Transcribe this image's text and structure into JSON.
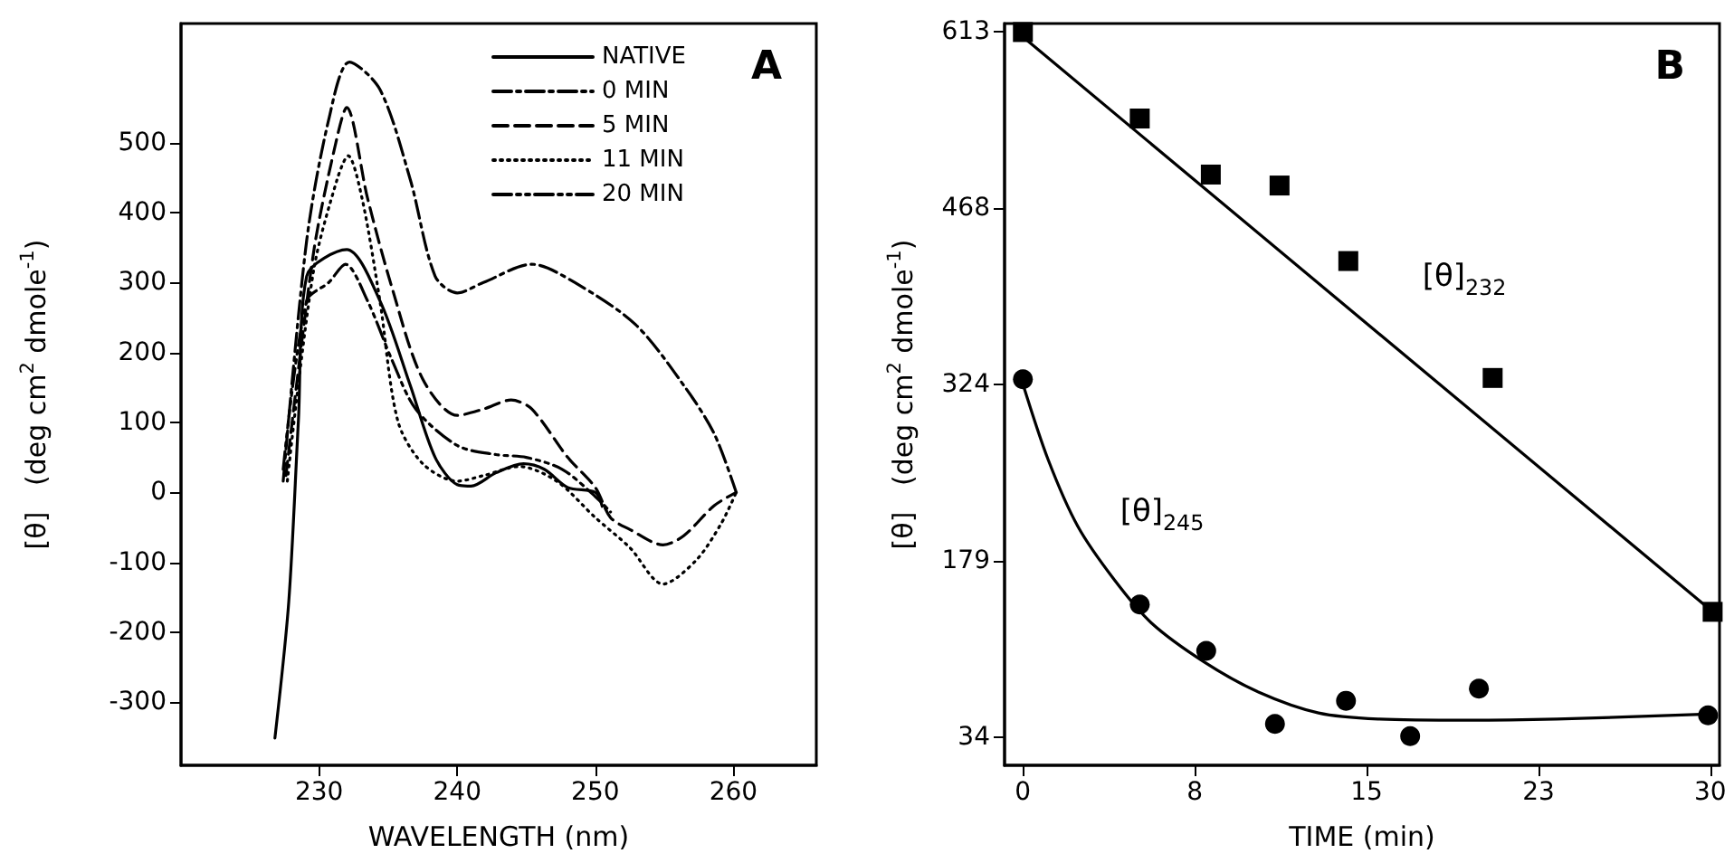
{
  "chart_data": [
    {
      "type": "line",
      "title": "A",
      "xlabel": "WAVELENGTH (nm)",
      "ylabel": "[θ]   (deg cm$^{2}$ dmole$^{-1}$)",
      "xlim": [
        220,
        266
      ],
      "ylim": [
        -390,
        670
      ],
      "xticks": [
        230,
        240,
        250,
        260
      ],
      "yticks": [
        -300,
        -200,
        -100,
        0,
        100,
        200,
        300,
        400,
        500
      ],
      "grid": false,
      "legend": "top right",
      "marker": "none",
      "series": [
        {
          "name": "NATIVE",
          "color": "#000000",
          "line_style": "solid",
          "x": [
            226.8,
            227.8,
            228.5,
            229.1,
            232,
            234.4,
            236.6,
            238.4,
            240,
            241,
            242.8,
            244.8,
            246.3,
            248,
            250,
            250.5
          ],
          "values": [
            -351,
            -157,
            102,
            309,
            347,
            274,
            153,
            50,
            11,
            9,
            28,
            41,
            33,
            7,
            0,
            -20
          ]
        },
        {
          "name": "0 MIN",
          "color": "#000000",
          "line_style": "dashdot",
          "x": [
            227.4,
            229.1,
            230.7,
            232.2,
            234.4,
            236.6,
            238.4,
            240,
            241.9,
            245.4,
            248.5,
            252.9,
            256.4,
            258.6,
            260.2
          ],
          "values": [
            16,
            360,
            533,
            615,
            576,
            447,
            309,
            285,
            300,
            326,
            300,
            240,
            153,
            84,
            0
          ]
        },
        {
          "name": "5 MIN",
          "color": "#000000",
          "line_style": "dashed",
          "x": [
            227.6,
            229.6,
            231.1,
            232,
            233.5,
            235.3,
            237.5,
            240,
            241.9,
            243.9,
            245.4,
            248,
            250,
            251.1,
            252.5,
            254.9,
            256.4,
            258.6,
            260.2
          ],
          "values": [
            24,
            343,
            490,
            550,
            421,
            291,
            162,
            110,
            119,
            132,
            119,
            50,
            7,
            -36,
            -53,
            -75,
            -62,
            -19,
            0
          ]
        },
        {
          "name": "11 MIN",
          "color": "#000000",
          "line_style": "dotted",
          "x": [
            227.7,
            229.6,
            231.3,
            232.1,
            233.1,
            234.4,
            235.7,
            237.5,
            240,
            241.9,
            244.5,
            247.2,
            250,
            252.5,
            254.9,
            257.3,
            259.1,
            260.2
          ],
          "values": [
            16,
            317,
            447,
            481,
            421,
            274,
            102,
            41,
            16,
            24,
            37,
            16,
            -36,
            -79,
            -131,
            -97,
            -45,
            0
          ]
        },
        {
          "name": "20 MIN",
          "color": "#000000",
          "line_style": "dashdotdot",
          "x": [
            227.4,
            229.1,
            230.7,
            231.9,
            233.5,
            235.3,
            237,
            240,
            242.8,
            245,
            247.6,
            250,
            251.1
          ],
          "values": [
            33,
            274,
            300,
            326,
            274,
            188,
            119,
            67,
            54,
            50,
            33,
            -6,
            -28
          ]
        }
      ]
    },
    {
      "type": "scatter",
      "title": "B",
      "xlabel": "TIME (min)",
      "ylabel": "[θ]   (deg cm$^{2}$ dmole$^{-1}$)",
      "xlim": [
        -0.8,
        30.4
      ],
      "ylim": [
        11,
        620
      ],
      "xticks": [
        0,
        {
          "value": 7.5,
          "label": "8"
        },
        15,
        {
          "value": 22.5,
          "label": "23"
        },
        30
      ],
      "yticks": [
        34,
        {
          "value": 178.75,
          "label": "179"
        },
        {
          "value": 323.5,
          "label": "324"
        },
        {
          "value": 468.25,
          "label": "468"
        },
        613
      ],
      "grid": false,
      "annotations": [
        "[θ]$_{232}$",
        "[θ]$_{245}$"
      ],
      "series": [
        {
          "color": "#000000",
          "marker": "square",
          "x": [
            0,
            5.1,
            8.2,
            11.2,
            14.2,
            20.5,
            30.1
          ],
          "values": [
            613,
            542,
            496,
            487,
            425,
            329,
            137
          ]
        },
        {
          "type": "line",
          "color": "#000000",
          "marker": "none",
          "line_style": "solid",
          "x": [
            0,
            30.1
          ],
          "values": [
            609,
            137
          ]
        },
        {
          "color": "#000000",
          "marker": "circle",
          "x": [
            0,
            5.1,
            8,
            11,
            14.1,
            16.9,
            19.9,
            29.9
          ],
          "values": [
            328,
            143,
            105,
            45,
            64,
            35,
            74,
            52
          ]
        },
        {
          "type": "line",
          "color": "#000000",
          "marker": "none",
          "line_style": "solid",
          "x": [
            0,
            1.1,
            2.4,
            4,
            5.6,
            7.9,
            10.3,
            12.9,
            15.5,
            19.4,
            23.3,
            29.9
          ],
          "values": [
            324,
            262,
            207,
            163,
            128,
            96,
            71,
            54,
            49,
            48,
            49,
            53
          ]
        }
      ]
    }
  ]
}
